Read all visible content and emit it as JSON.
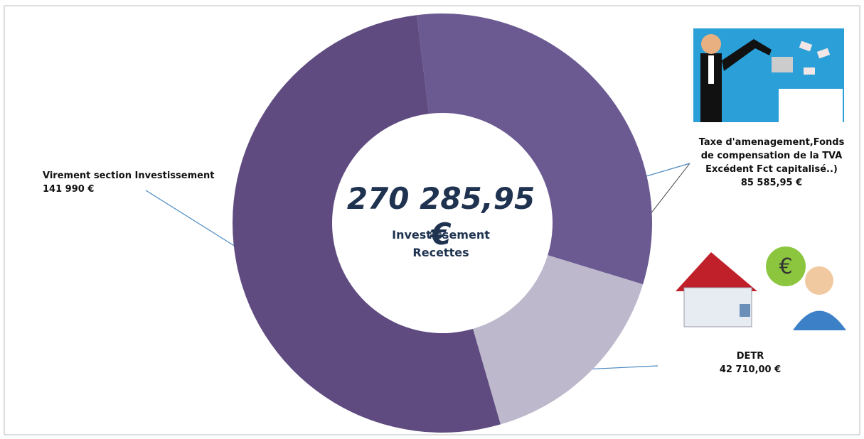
{
  "chart_data": {
    "type": "donut",
    "categories": [
      "Taxe d'amenagement,Fonds\nde compensation de la TVA\nExcédent Fct capitalisé..)",
      "DETR",
      "Virement section Investissement"
    ],
    "values": [
      85585.95,
      42710,
      141990
    ],
    "value_labels": [
      "85 585,95 €",
      "42 710,00 €",
      "141 990 €"
    ],
    "colors": [
      "#6b5a92",
      "#bdb8cc",
      "#5f4b80"
    ],
    "total": {
      "value": 270285.95,
      "label": "270 285,95 €"
    },
    "center_lines": [
      "Investissement",
      "Recettes"
    ]
  }
}
